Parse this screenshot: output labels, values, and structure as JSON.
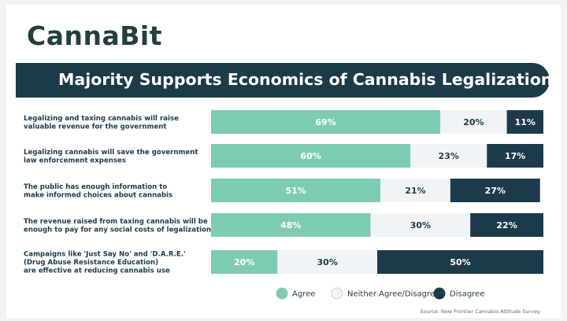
{
  "brand": "CannaBit",
  "colors": {
    "agree": "#7ecbb4",
    "neutral": "#f1f4f7",
    "disagree": "#1d3a4a",
    "banner": "#1d3a4a"
  },
  "source": "Source: New Frontier Cannabis Attitude Survey",
  "chart_data": {
    "type": "bar",
    "orientation": "horizontal",
    "stacked": true,
    "title": "Majority Supports Economics of Cannabis Legalization",
    "categories": [
      [
        "Legalizing and taxing cannabis will raise",
        "valuable revenue for the government"
      ],
      [
        "Legalizing cannabis will save the government",
        "law enforcement expenses"
      ],
      [
        "The public has enough information to",
        "make informed choices about cannabis"
      ],
      [
        "The revenue raised from taxing cannabis will be",
        "enough to pay for any social costs of legalization"
      ],
      [
        "Campaigns like 'Just Say No' and 'D.A.R.E.'",
        "(Drug Abuse Resistance Education)",
        "are effective at reducing cannabis use"
      ]
    ],
    "series": [
      {
        "name": "Agree",
        "values": [
          69,
          60,
          51,
          48,
          20
        ],
        "color": "#7ecbb4"
      },
      {
        "name": "Neither Agree/Disagree",
        "values": [
          20,
          23,
          21,
          30,
          30
        ],
        "color": "#f1f4f7"
      },
      {
        "name": "Disagree",
        "values": [
          11,
          17,
          27,
          22,
          50
        ],
        "color": "#1d3a4a"
      }
    ],
    "value_suffix": "%",
    "xlim": [
      0,
      100
    ],
    "legend": "bottom-right",
    "grid": false
  }
}
